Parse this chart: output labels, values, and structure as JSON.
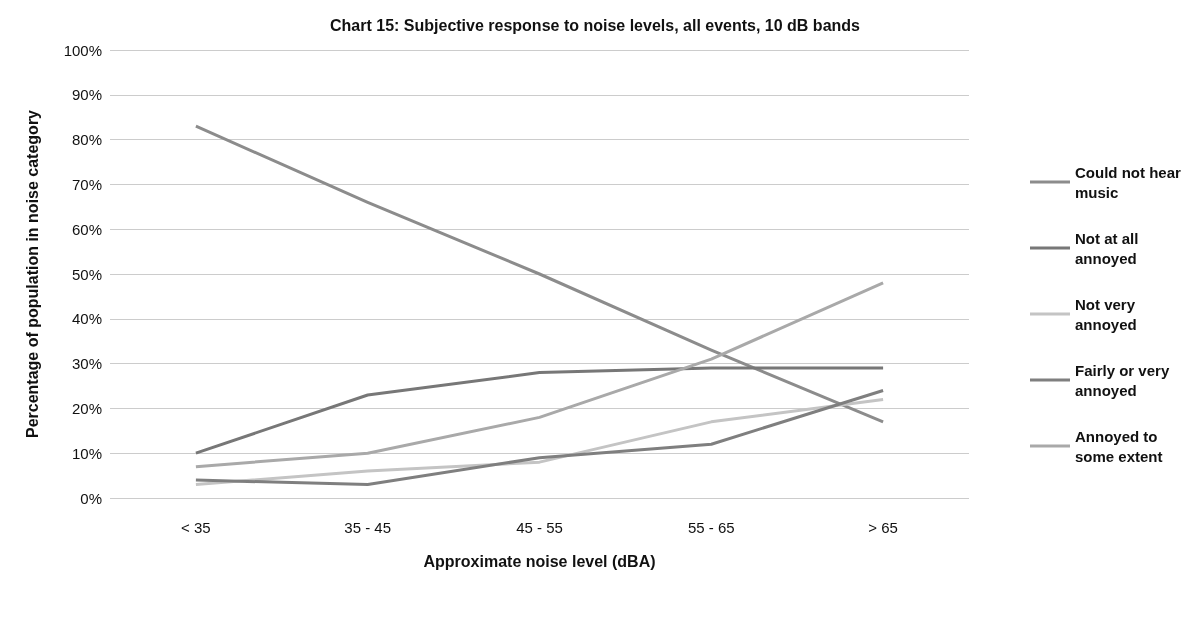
{
  "chart_data": {
    "type": "line",
    "title": "Chart 15: Subjective response to noise levels, all events, 10 dB bands",
    "xlabel": "Approximate noise level (dBA)",
    "ylabel": "Percentage of population in noise category",
    "categories": [
      "< 35",
      "35 - 45",
      "45 - 55",
      "55 - 65",
      "> 65"
    ],
    "series": [
      {
        "name": "Could not hear music",
        "color": "#8c8c8c",
        "values": [
          83,
          66,
          50,
          33,
          17
        ]
      },
      {
        "name": "Not at all annoyed",
        "color": "#777777",
        "values": [
          10,
          23,
          28,
          29,
          29
        ]
      },
      {
        "name": "Not very annoyed",
        "color": "#c4c4c4",
        "values": [
          3,
          6,
          8,
          17,
          22
        ]
      },
      {
        "name": "Fairly or very annoyed",
        "color": "#7f7f7f",
        "values": [
          4,
          3,
          9,
          12,
          24
        ]
      },
      {
        "name": "Annoyed to some extent",
        "color": "#a9a9a9",
        "values": [
          7,
          10,
          18,
          31,
          48
        ]
      }
    ],
    "ylim": [
      0,
      100
    ],
    "yticks": [
      {
        "value": 0,
        "label": "0%"
      },
      {
        "value": 10,
        "label": "10%"
      },
      {
        "value": 20,
        "label": "20%"
      },
      {
        "value": 30,
        "label": "30%"
      },
      {
        "value": 40,
        "label": "40%"
      },
      {
        "value": 50,
        "label": "50%"
      },
      {
        "value": 60,
        "label": "60%"
      },
      {
        "value": 70,
        "label": "70%"
      },
      {
        "value": 80,
        "label": "80%"
      },
      {
        "value": 90,
        "label": "90%"
      },
      {
        "value": 100,
        "label": "100%"
      }
    ],
    "grid": "y",
    "legend": "right",
    "marker": "none",
    "line_style": "solid"
  }
}
